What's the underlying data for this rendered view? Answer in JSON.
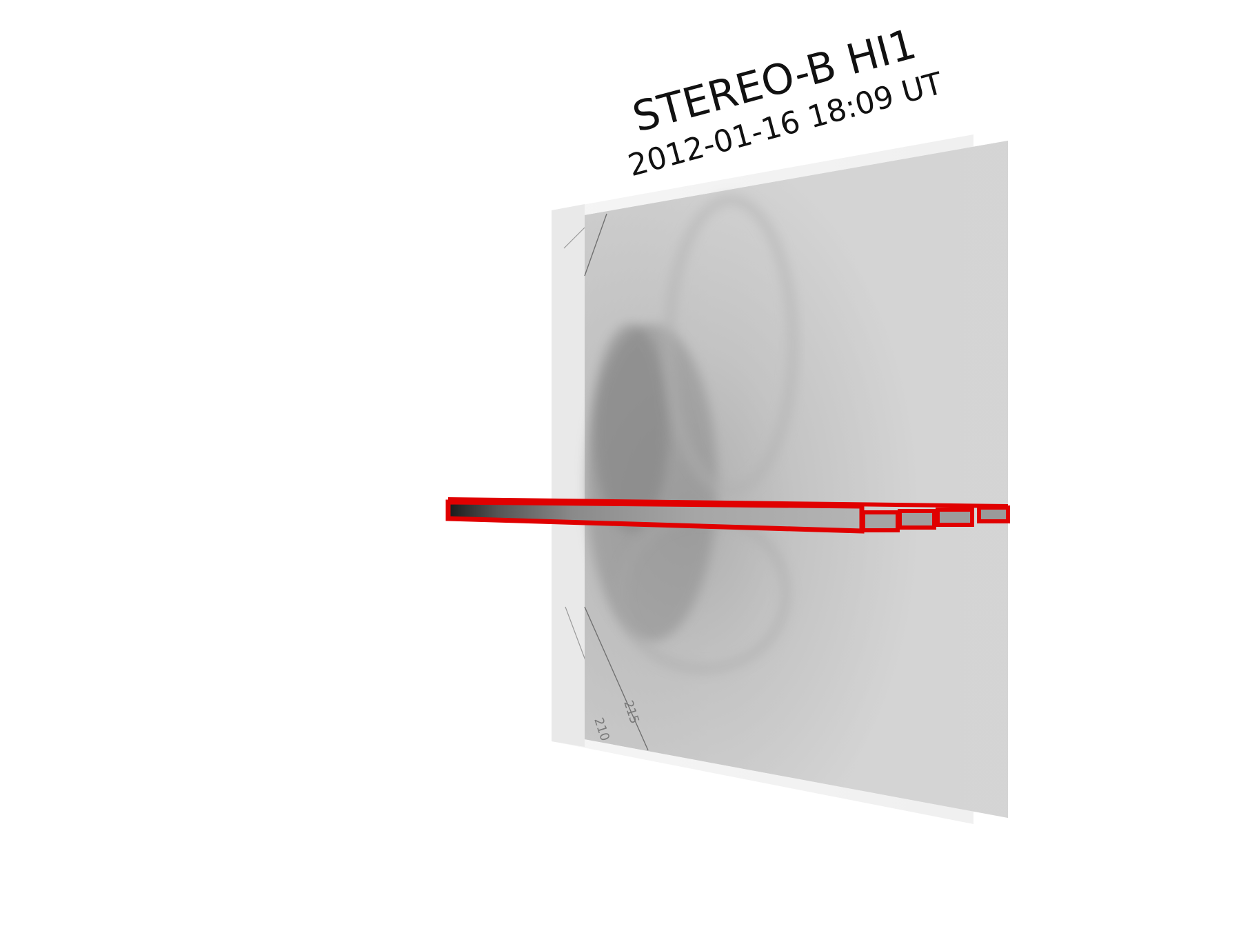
{
  "title": {
    "line1": "STEREO-B HI1",
    "line2": "2012-01-16 18:09 UT"
  },
  "image_labels": {
    "inner_grid": "215",
    "outer_grid": "210"
  },
  "colors": {
    "slit_outline": "#e00000",
    "background": "#ffffff"
  }
}
